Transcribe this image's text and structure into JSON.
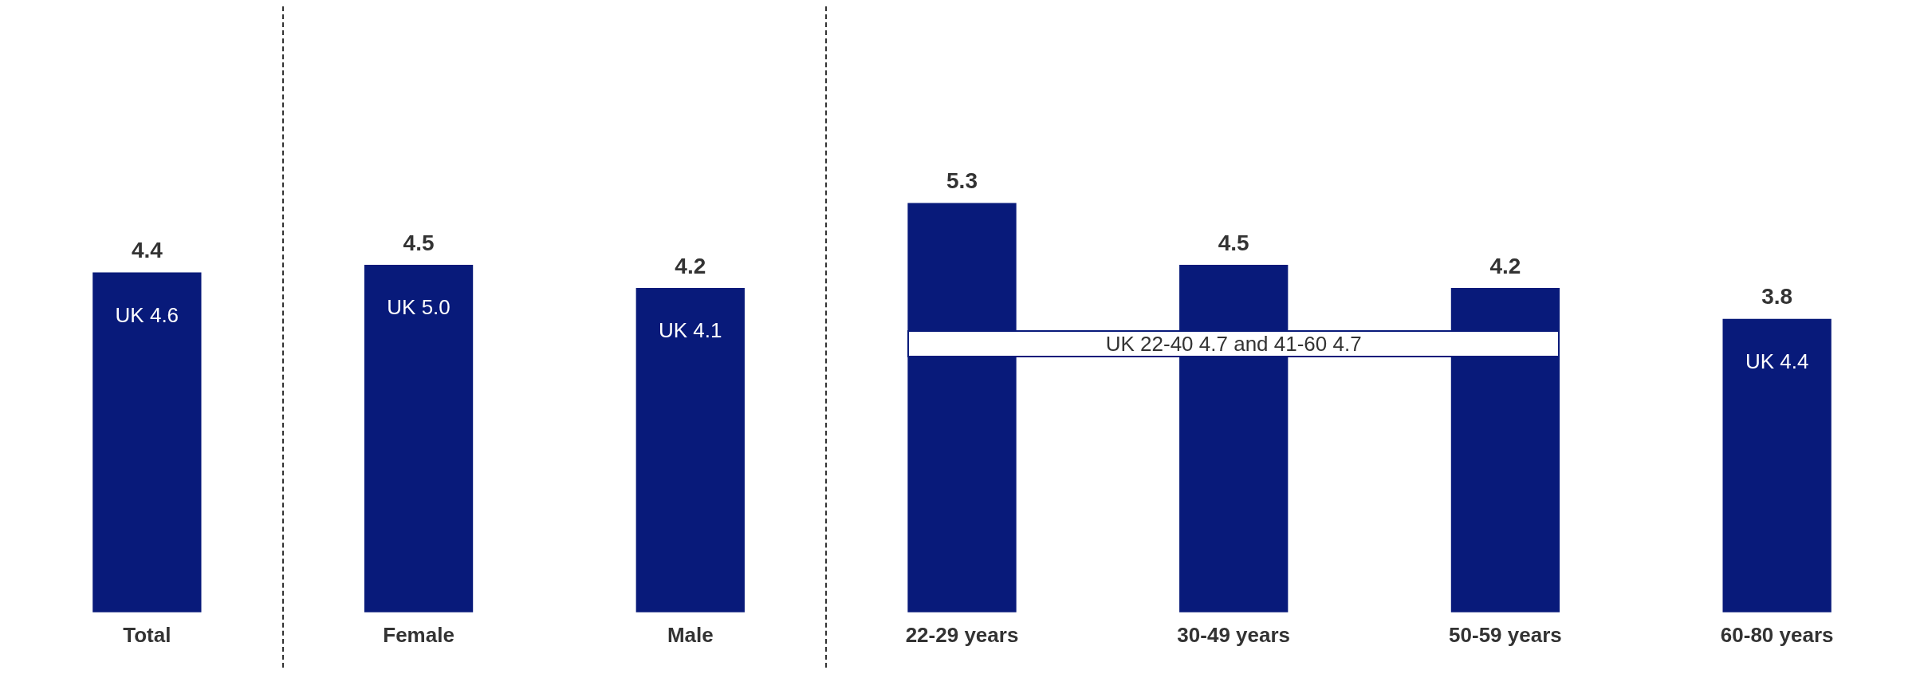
{
  "chart_data": {
    "type": "bar",
    "categories": [
      "Total",
      "Female",
      "Male",
      "22-29 years",
      "30-49 years",
      "50-59 years",
      "60-80 years"
    ],
    "values": [
      4.4,
      4.5,
      4.2,
      5.3,
      4.5,
      4.2,
      3.8
    ],
    "color": "#081a7a",
    "data_labels": true,
    "grid": false,
    "legend": false,
    "tick_labels": "x",
    "annotations": [
      "UK 4.6",
      "UK 5.0",
      "UK 4.1",
      "UK 22-40 4.7 and 41-60 4.7",
      "UK 4.4"
    ]
  }
}
